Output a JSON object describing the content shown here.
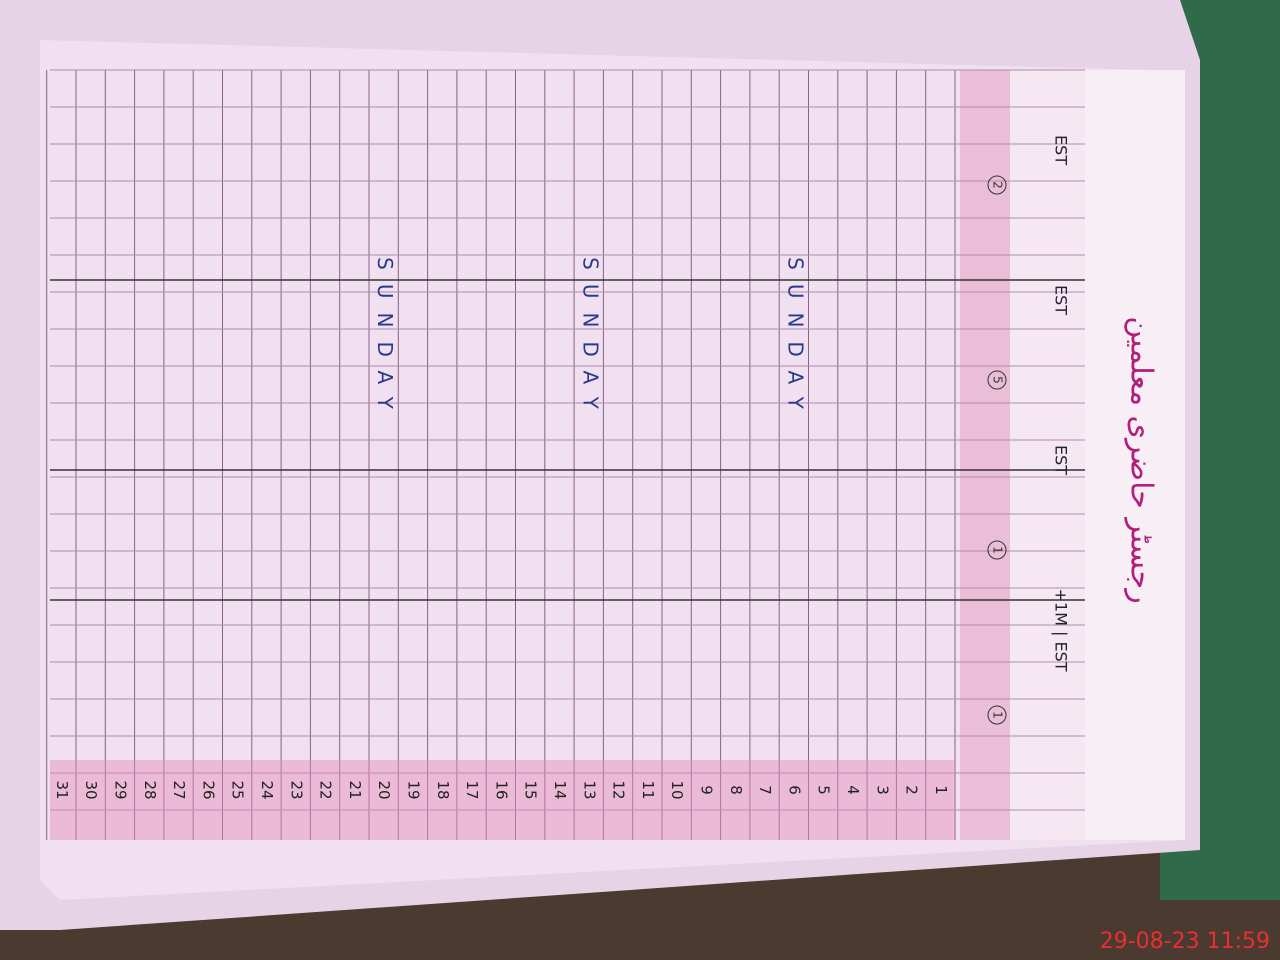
{
  "register": {
    "title": "رجسٹر حاضری معلمین",
    "column_headers": [
      "EST",
      "EST",
      "EST",
      "+1M | EST"
    ],
    "circled_marks": [
      "2",
      "5",
      "1",
      "1"
    ],
    "row_numbers": [
      "1",
      "2",
      "3",
      "4",
      "5",
      "6",
      "7",
      "8",
      "9",
      "10",
      "11",
      "12",
      "13",
      "14",
      "15",
      "16",
      "17",
      "18",
      "19",
      "20",
      "21",
      "22",
      "23",
      "24",
      "25",
      "26",
      "27",
      "28",
      "29",
      "30",
      "31"
    ],
    "holiday_notes": [
      "SUNDAY",
      "SUNDAY",
      "SUNDAY"
    ]
  },
  "timestamp": "29-08-23  11:59"
}
